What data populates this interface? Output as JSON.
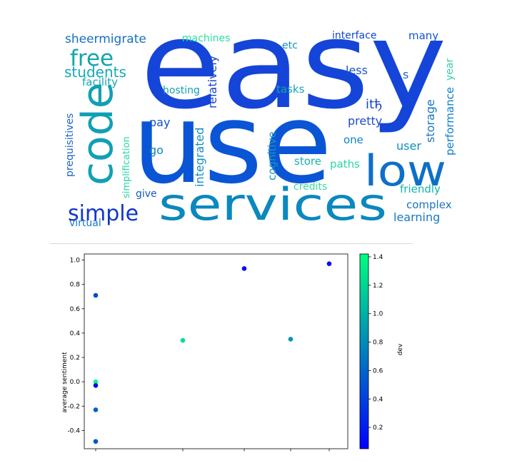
{
  "wordcloud": {
    "words": [
      {
        "text": "easy",
        "color": "#1445d8"
      },
      {
        "text": "use",
        "color": "#0a55d5"
      },
      {
        "text": "services",
        "color": "#0b88be"
      },
      {
        "text": "low",
        "color": "#0e6fc8"
      },
      {
        "text": "code",
        "color": "#10a0b5"
      },
      {
        "text": "free",
        "color": "#11a6ad"
      },
      {
        "text": "simple",
        "color": "#1035cf"
      },
      {
        "text": "students",
        "color": "#13a9b8"
      },
      {
        "text": "sheermigrate",
        "color": "#1470c0"
      },
      {
        "text": "machines",
        "color": "#28e0a4"
      },
      {
        "text": "etc",
        "color": "#0f93bd"
      },
      {
        "text": "interface",
        "color": "#1147cf"
      },
      {
        "text": "many",
        "color": "#1157c9"
      },
      {
        "text": "less",
        "color": "#1b52c9"
      },
      {
        "text": "s",
        "color": "#1569c8"
      },
      {
        "text": "year",
        "color": "#35d0ab"
      },
      {
        "text": "facility",
        "color": "#12a8b3"
      },
      {
        "text": "hosting",
        "color": "#12a1b7"
      },
      {
        "text": "relatively",
        "color": "#1b45cd"
      },
      {
        "text": "tasks",
        "color": "#17a5b2"
      },
      {
        "text": "itђ",
        "color": "#1548c6"
      },
      {
        "text": "performance",
        "color": "#0f7fc6"
      },
      {
        "text": "prequisitives",
        "color": "#1c66c7"
      },
      {
        "text": "simplification",
        "color": "#28d6a6"
      },
      {
        "text": "pay",
        "color": "#1250cf"
      },
      {
        "text": "pretty",
        "color": "#1c4bcd"
      },
      {
        "text": "storage",
        "color": "#1776c6"
      },
      {
        "text": "cognitive",
        "color": "#1798bf"
      },
      {
        "text": "integrated",
        "color": "#108fbf"
      },
      {
        "text": "one",
        "color": "#1284c1"
      },
      {
        "text": "go",
        "color": "#0f83c2"
      },
      {
        "text": "user",
        "color": "#0e8fc1"
      },
      {
        "text": "store",
        "color": "#15b4ad"
      },
      {
        "text": "paths",
        "color": "#2bd6a6"
      },
      {
        "text": "credits",
        "color": "#3cdca2"
      },
      {
        "text": "friendly",
        "color": "#0fb6ab"
      },
      {
        "text": "give",
        "color": "#1459c8"
      },
      {
        "text": "complex",
        "color": "#1a72c6"
      },
      {
        "text": "learning",
        "color": "#1778c5"
      },
      {
        "text": "virtual",
        "color": "#1778c5"
      }
    ]
  },
  "chart_data": {
    "type": "scatter",
    "xlabel": "",
    "ylabel": "average sentiment",
    "ylim": [
      -0.55,
      1.05
    ],
    "yticks": [
      1.0,
      0.8,
      0.6,
      0.4,
      0.2,
      0.0,
      -0.2,
      -0.4
    ],
    "xtick_count": 5,
    "points": [
      {
        "xi": 0,
        "y": 0.71,
        "dev": 0.45
      },
      {
        "xi": 0,
        "y": 0.0,
        "dev": 1.4
      },
      {
        "xi": 0,
        "y": -0.03,
        "dev": 0.1
      },
      {
        "xi": 0,
        "y": -0.23,
        "dev": 0.55
      },
      {
        "xi": 0,
        "y": -0.49,
        "dev": 0.5
      },
      {
        "xi": 1,
        "y": 0.34,
        "dev": 1.25
      },
      {
        "xi": 2,
        "y": 0.93,
        "dev": 0.12
      },
      {
        "xi": 3,
        "y": 0.35,
        "dev": 0.85
      },
      {
        "xi": 4,
        "y": 0.97,
        "dev": 0.1
      }
    ],
    "colorbar": {
      "label": "dev",
      "range": [
        0.05,
        1.42
      ],
      "ticks": [
        "1.4",
        "1.2",
        "1.0",
        "0.8",
        "0.6",
        "0.4",
        "0.2"
      ],
      "tick_values": [
        1.4,
        1.2,
        1.0,
        0.8,
        0.6,
        0.4,
        0.2
      ],
      "colormap": "winter"
    }
  }
}
